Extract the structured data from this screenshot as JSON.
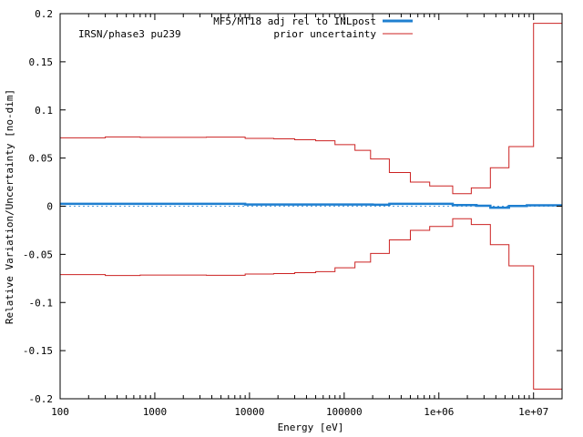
{
  "chart_data": {
    "type": "line",
    "title": "",
    "annotation": "IRSN/phase3 pu239",
    "xlabel": "Energy [eV]",
    "ylabel": "Relative Variation/Uncertainty [no-dim]",
    "xscale": "log",
    "xlim": [
      100,
      20000000
    ],
    "ylim": [
      -0.2,
      0.2
    ],
    "x_ticks": [
      {
        "value": 100,
        "label": "100"
      },
      {
        "value": 1000,
        "label": "1000"
      },
      {
        "value": 10000,
        "label": "10000"
      },
      {
        "value": 100000,
        "label": "100000"
      },
      {
        "value": 1000000,
        "label": "1e+06"
      },
      {
        "value": 10000000,
        "label": "1e+07"
      }
    ],
    "y_ticks": [
      {
        "value": 0.2,
        "label": "0.2"
      },
      {
        "value": 0.15,
        "label": "0.15"
      },
      {
        "value": 0.1,
        "label": "0.1"
      },
      {
        "value": 0.05,
        "label": "0.05"
      },
      {
        "value": 0,
        "label": "0"
      },
      {
        "value": -0.05,
        "label": "-0.05"
      },
      {
        "value": -0.1,
        "label": "-0.1"
      },
      {
        "value": -0.15,
        "label": "-0.15"
      },
      {
        "value": -0.2,
        "label": "-0.2"
      }
    ],
    "zero_line": true,
    "legend_position": "top-right",
    "series": [
      {
        "name": "MF5/MT18 adj rel to INLpost",
        "color": "#1f7fd0",
        "style": "step",
        "edges": [
          100,
          9000,
          200000,
          300000,
          1400000,
          2500000,
          3500000,
          5500000,
          8500000,
          20000000
        ],
        "values": [
          0.0025,
          0.0018,
          0.0015,
          0.0025,
          0.0012,
          0.0005,
          -0.0015,
          0.0002,
          0.001
        ]
      },
      {
        "name": "prior uncertainty",
        "color": "#cc2222",
        "style": "step",
        "symmetric": true,
        "edges": [
          100,
          300,
          700,
          3500,
          9000,
          18000,
          30000,
          50000,
          80000,
          130000,
          190000,
          300000,
          500000,
          800000,
          1400000,
          2200000,
          3500000,
          5500000,
          10000000,
          20000000
        ],
        "values": [
          0.071,
          0.072,
          0.0715,
          0.0718,
          0.0705,
          0.07,
          0.069,
          0.068,
          0.064,
          0.058,
          0.049,
          0.035,
          0.025,
          0.021,
          0.013,
          0.019,
          0.04,
          0.062,
          0.19
        ]
      }
    ]
  }
}
